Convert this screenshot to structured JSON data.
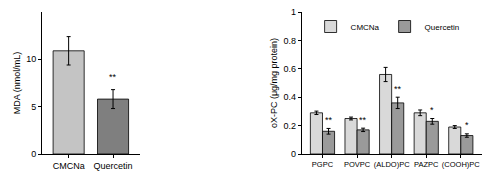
{
  "chart_data": [
    {
      "type": "bar",
      "ylabel": "MDA (nmol/mL)",
      "categories": [
        "CMCNa",
        "Quercetin"
      ],
      "values": [
        10.9,
        5.8
      ],
      "errors": [
        1.5,
        1.0
      ],
      "colors": [
        "#c4c4c4",
        "#7f7f7f"
      ],
      "ylim": [
        0,
        15
      ],
      "yticks": [
        0,
        5,
        10
      ],
      "grid": false,
      "annotations": [
        {
          "category": "Quercetin",
          "y": 7.4,
          "text": "**"
        }
      ]
    },
    {
      "type": "bar",
      "ylabel": "oX-PC (μg/mg protein)",
      "categories": [
        "PGPC",
        "POVPC",
        "(ALDO)PC",
        "PAZPC",
        "(COOH)PC"
      ],
      "series": [
        {
          "name": "CMCNa",
          "color": "#d9d9d9",
          "values": [
            0.29,
            0.25,
            0.56,
            0.29,
            0.19
          ],
          "errors": [
            0.012,
            0.01,
            0.05,
            0.02,
            0.01
          ]
        },
        {
          "name": "Quercetin",
          "color": "#9a9a9a",
          "values": [
            0.16,
            0.17,
            0.36,
            0.23,
            0.13
          ],
          "errors": [
            0.02,
            0.012,
            0.04,
            0.02,
            0.012
          ]
        }
      ],
      "ylim": [
        0,
        1
      ],
      "yticks": [
        0,
        0.2,
        0.4,
        0.6,
        0.8,
        1
      ],
      "grid": false,
      "legend": "top left",
      "annotations": [
        {
          "category": "PGPC",
          "series": "Quercetin",
          "y": 0.19,
          "text": "**"
        },
        {
          "category": "POVPC",
          "series": "Quercetin",
          "y": 0.19,
          "text": "**"
        },
        {
          "category": "(ALDO)PC",
          "series": "Quercetin",
          "y": 0.41,
          "text": "**"
        },
        {
          "category": "PAZPC",
          "series": "Quercetin",
          "y": 0.26,
          "text": "*"
        },
        {
          "category": "(COOH)PC",
          "series": "Quercetin",
          "y": 0.155,
          "text": "*"
        }
      ]
    }
  ]
}
